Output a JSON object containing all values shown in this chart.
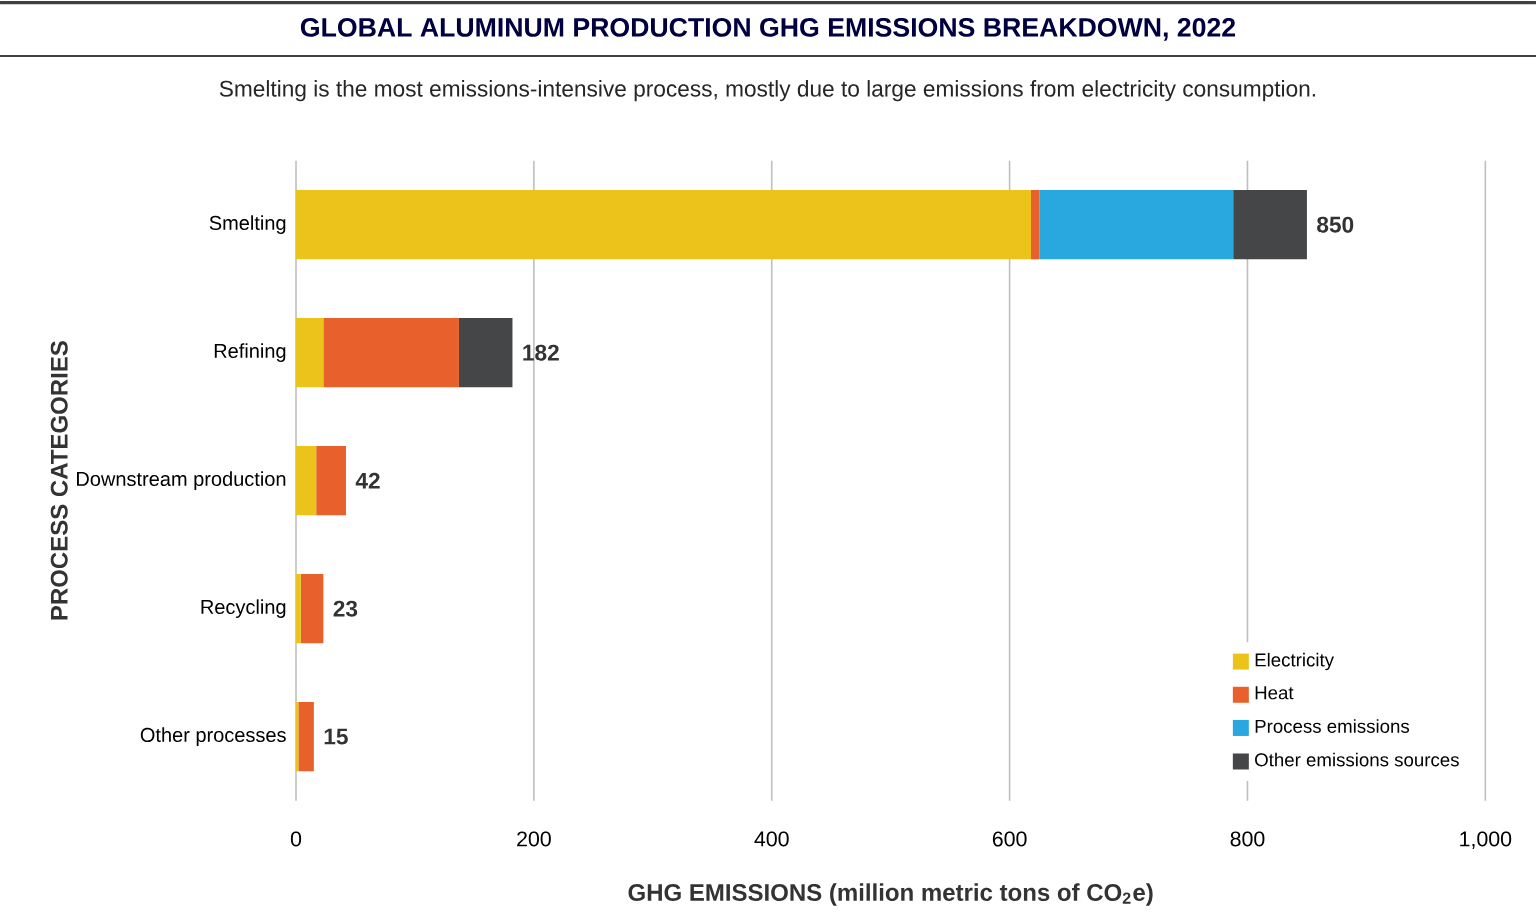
{
  "chart_data": {
    "type": "bar",
    "orientation": "horizontal",
    "stacked": true,
    "title": "GLOBAL ALUMINUM PRODUCTION GHG EMISSIONS BREAKDOWN, 2022",
    "subtitle": "Smelting is the most emissions-intensive process, mostly due to large emissions from electricity consumption.",
    "xlabel": "**GHG EMISSIONS** (million metric tons of CO$_{2}$e)",
    "ylabel": "PROCESS CATEGORIES",
    "categories": [
      "Smelting",
      "Refining",
      "Downstream production",
      "Recycling",
      "Other processes"
    ],
    "series": [
      {
        "name": "Electricity",
        "color": "#ecc31a",
        "values": [
          618,
          23,
          17,
          4,
          2
        ]
      },
      {
        "name": "Heat",
        "color": "#e8602c",
        "values": [
          7,
          114,
          25,
          19,
          13
        ]
      },
      {
        "name": "Process emissions",
        "color": "#29a8e0",
        "values": [
          163,
          0,
          0,
          0,
          0
        ]
      },
      {
        "name": "Other emissions sources",
        "color": "#444647",
        "values": [
          62,
          45,
          0,
          0,
          0
        ]
      }
    ],
    "totals": [
      "850",
      "182",
      "42",
      "23",
      "15"
    ],
    "xlim": [
      0,
      1000
    ],
    "xticks": [
      0,
      200,
      400,
      600,
      800,
      {
        "value": 1000,
        "label": "1,000"
      }
    ],
    "grid": "x",
    "legend": "bottom right"
  }
}
